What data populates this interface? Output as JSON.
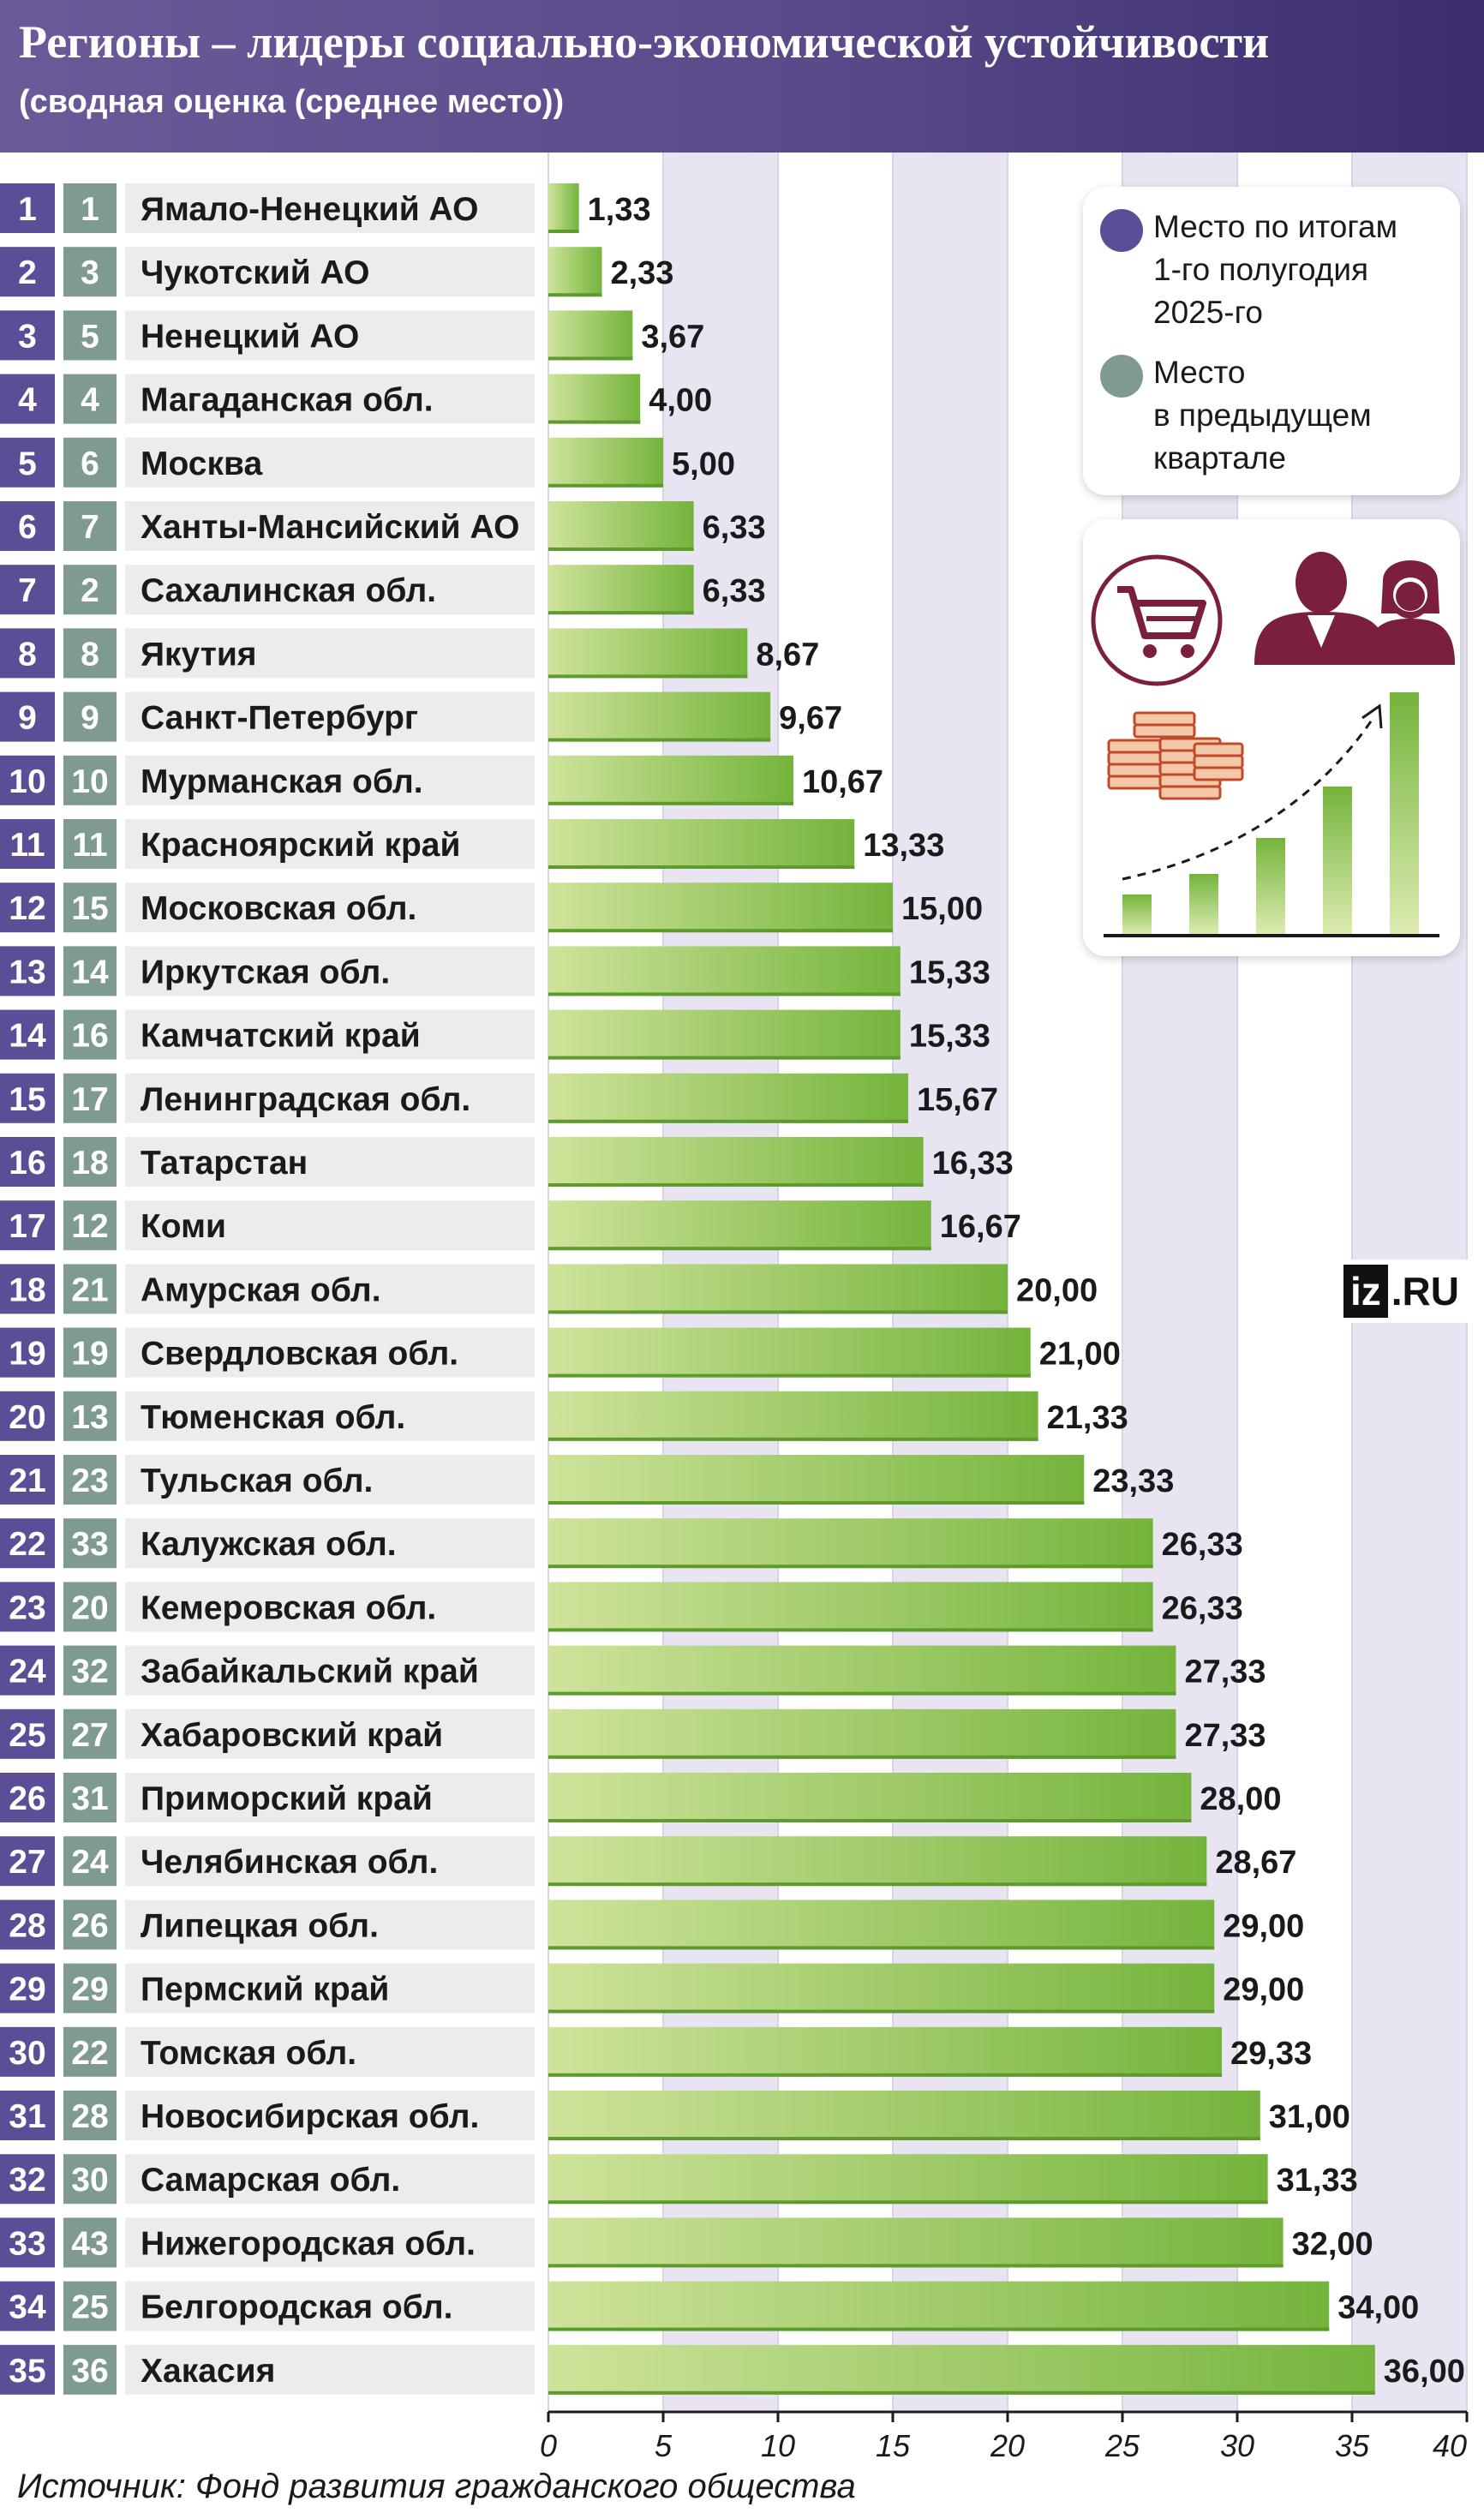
{
  "header": {
    "title": "Регионы – лидеры социально-экономической устойчивости",
    "subtitle": "(сводная оценка (среднее место))"
  },
  "legend": {
    "current": "Место по итогам\n1-го полугодия\n2025-го",
    "previous": "Место\nв предыдущем\nквартале"
  },
  "logo": {
    "iz": "iz",
    "ru": ".RU"
  },
  "source": "Источник: Фонд развития гражданского общества",
  "colors": {
    "current_rank": "#5b4e96",
    "previous_rank": "#7f9a8e",
    "bar_light": "#cfe39b",
    "bar_dark": "#74b43c",
    "band": "#e8e4f1"
  },
  "chart_data": {
    "type": "bar",
    "orientation": "horizontal",
    "title": "Регионы – лидеры социально-экономической устойчивости",
    "subtitle": "(сводная оценка (среднее место))",
    "xlim": [
      0,
      40
    ],
    "xticks": [
      0,
      5,
      10,
      15,
      20,
      25,
      30,
      35,
      40
    ],
    "rows": [
      {
        "rank": "1",
        "prev": "1",
        "region": "Ямало-Ненецкий АО",
        "value": 1.33,
        "label": "1,33"
      },
      {
        "rank": "2",
        "prev": "3",
        "region": "Чукотский АО",
        "value": 2.33,
        "label": "2,33"
      },
      {
        "rank": "3",
        "prev": "5",
        "region": "Ненецкий АО",
        "value": 3.67,
        "label": "3,67"
      },
      {
        "rank": "4",
        "prev": "4",
        "region": "Магаданская обл.",
        "value": 4.0,
        "label": "4,00"
      },
      {
        "rank": "5",
        "prev": "6",
        "region": "Москва",
        "value": 5.0,
        "label": "5,00"
      },
      {
        "rank": "6",
        "prev": "7",
        "region": "Ханты-Мансийский АО",
        "value": 6.33,
        "label": "6,33"
      },
      {
        "rank": "7",
        "prev": "2",
        "region": "Сахалинская обл.",
        "value": 6.33,
        "label": "6,33"
      },
      {
        "rank": "8",
        "prev": "8",
        "region": "Якутия",
        "value": 8.67,
        "label": "8,67"
      },
      {
        "rank": "9",
        "prev": "9",
        "region": "Санкт-Петербург",
        "value": 9.67,
        "label": "9,67"
      },
      {
        "rank": "10",
        "prev": "10",
        "region": "Мурманская обл.",
        "value": 10.67,
        "label": "10,67"
      },
      {
        "rank": "11",
        "prev": "11",
        "region": "Красноярский край",
        "value": 13.33,
        "label": "13,33"
      },
      {
        "rank": "12",
        "prev": "15",
        "region": "Московская обл.",
        "value": 15.0,
        "label": "15,00"
      },
      {
        "rank": "13",
        "prev": "14",
        "region": "Иркутская обл.",
        "value": 15.33,
        "label": "15,33"
      },
      {
        "rank": "14",
        "prev": "16",
        "region": "Камчатский край",
        "value": 15.33,
        "label": "15,33"
      },
      {
        "rank": "15",
        "prev": "17",
        "region": "Ленинградская обл.",
        "value": 15.67,
        "label": "15,67"
      },
      {
        "rank": "16",
        "prev": "18",
        "region": "Татарстан",
        "value": 16.33,
        "label": "16,33"
      },
      {
        "rank": "17",
        "prev": "12",
        "region": "Коми",
        "value": 16.67,
        "label": "16,67"
      },
      {
        "rank": "18",
        "prev": "21",
        "region": "Амурская обл.",
        "value": 20.0,
        "label": "20,00"
      },
      {
        "rank": "19",
        "prev": "19",
        "region": "Свердловская обл.",
        "value": 21.0,
        "label": "21,00"
      },
      {
        "rank": "20",
        "prev": "13",
        "region": "Тюменская обл.",
        "value": 21.33,
        "label": "21,33"
      },
      {
        "rank": "21",
        "prev": "23",
        "region": "Тульская обл.",
        "value": 23.33,
        "label": "23,33"
      },
      {
        "rank": "22",
        "prev": "33",
        "region": "Калужская обл.",
        "value": 26.33,
        "label": "26,33"
      },
      {
        "rank": "23",
        "prev": "20",
        "region": "Кемеровская обл.",
        "value": 26.33,
        "label": "26,33"
      },
      {
        "rank": "24",
        "prev": "32",
        "region": "Забайкальский край",
        "value": 27.33,
        "label": "27,33"
      },
      {
        "rank": "25",
        "prev": "27",
        "region": "Хабаровский край",
        "value": 27.33,
        "label": "27,33"
      },
      {
        "rank": "26",
        "prev": "31",
        "region": "Приморский край",
        "value": 28.0,
        "label": "28,00"
      },
      {
        "rank": "27",
        "prev": "24",
        "region": "Челябинская обл.",
        "value": 28.67,
        "label": "28,67"
      },
      {
        "rank": "28",
        "prev": "26",
        "region": "Липецкая обл.",
        "value": 29.0,
        "label": "29,00"
      },
      {
        "rank": "29",
        "prev": "29",
        "region": "Пермский край",
        "value": 29.0,
        "label": "29,00"
      },
      {
        "rank": "30",
        "prev": "22",
        "region": "Томская обл.",
        "value": 29.33,
        "label": "29,33"
      },
      {
        "rank": "31",
        "prev": "28",
        "region": "Новосибирская обл.",
        "value": 31.0,
        "label": "31,00"
      },
      {
        "rank": "32",
        "prev": "30",
        "region": "Самарская обл.",
        "value": 31.33,
        "label": "31,33"
      },
      {
        "rank": "33",
        "prev": "43",
        "region": "Нижегородская обл.",
        "value": 32.0,
        "label": "32,00"
      },
      {
        "rank": "34",
        "prev": "25",
        "region": "Белгородская обл.",
        "value": 34.0,
        "label": "34,00"
      },
      {
        "rank": "35",
        "prev": "36",
        "region": "Хакасия",
        "value": 36.0,
        "label": "36,00"
      }
    ]
  }
}
